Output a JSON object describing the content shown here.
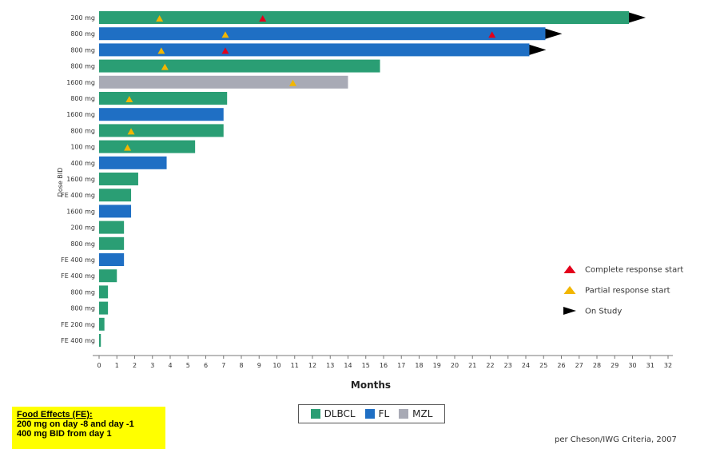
{
  "chart_data": {
    "type": "bar",
    "orientation": "horizontal",
    "ylabel": "Dose BID",
    "xlabel": "Months",
    "xlim": [
      0,
      32
    ],
    "xticks": [
      0,
      1,
      2,
      3,
      4,
      5,
      6,
      7,
      8,
      9,
      10,
      11,
      12,
      13,
      14,
      15,
      16,
      17,
      18,
      19,
      20,
      21,
      22,
      23,
      24,
      25,
      26,
      27,
      28,
      29,
      30,
      31,
      32
    ],
    "colors": {
      "DLBCL": "#2a9e74",
      "FL": "#1f6fc4",
      "MZL": "#a8aab5"
    },
    "marker_colors": {
      "complete": "#e3001b",
      "partial": "#f2b600",
      "on_study": "#000000"
    },
    "bars": [
      {
        "label": "200 mg",
        "type": "DLBCL",
        "months": 29.8,
        "on_study": true,
        "partial": [
          3.4
        ],
        "complete": [
          9.2
        ]
      },
      {
        "label": "800 mg",
        "type": "FL",
        "months": 25.1,
        "on_study": true,
        "partial": [
          7.1
        ],
        "complete": [
          22.1
        ]
      },
      {
        "label": "800 mg",
        "type": "FL",
        "months": 24.2,
        "on_study": true,
        "partial": [
          3.5
        ],
        "complete": [
          7.1
        ]
      },
      {
        "label": "800 mg",
        "type": "DLBCL",
        "months": 15.8,
        "on_study": false,
        "partial": [
          3.7
        ],
        "complete": []
      },
      {
        "label": "1600 mg",
        "type": "MZL",
        "months": 14.0,
        "on_study": false,
        "partial": [
          10.9
        ],
        "complete": []
      },
      {
        "label": "800 mg",
        "type": "DLBCL",
        "months": 7.2,
        "on_study": false,
        "partial": [
          1.7
        ],
        "complete": []
      },
      {
        "label": "1600 mg",
        "type": "FL",
        "months": 7.0,
        "on_study": false,
        "partial": [],
        "complete": []
      },
      {
        "label": "800 mg",
        "type": "DLBCL",
        "months": 7.0,
        "on_study": false,
        "partial": [
          1.8
        ],
        "complete": []
      },
      {
        "label": "100 mg",
        "type": "DLBCL",
        "months": 5.4,
        "on_study": false,
        "partial": [
          1.6
        ],
        "complete": []
      },
      {
        "label": "400 mg",
        "type": "FL",
        "months": 3.8,
        "on_study": false,
        "partial": [],
        "complete": []
      },
      {
        "label": "1600 mg",
        "type": "DLBCL",
        "months": 2.2,
        "on_study": false,
        "partial": [],
        "complete": []
      },
      {
        "label": "FE 400 mg",
        "type": "DLBCL",
        "months": 1.8,
        "on_study": false,
        "partial": [],
        "complete": []
      },
      {
        "label": "1600 mg",
        "type": "FL",
        "months": 1.8,
        "on_study": false,
        "partial": [],
        "complete": []
      },
      {
        "label": "200 mg",
        "type": "DLBCL",
        "months": 1.4,
        "on_study": false,
        "partial": [],
        "complete": []
      },
      {
        "label": "800 mg",
        "type": "DLBCL",
        "months": 1.4,
        "on_study": false,
        "partial": [],
        "complete": []
      },
      {
        "label": "FE 400 mg",
        "type": "FL",
        "months": 1.4,
        "on_study": false,
        "partial": [],
        "complete": []
      },
      {
        "label": "FE 400 mg",
        "type": "DLBCL",
        "months": 1.0,
        "on_study": false,
        "partial": [],
        "complete": []
      },
      {
        "label": "800 mg",
        "type": "DLBCL",
        "months": 0.5,
        "on_study": false,
        "partial": [],
        "complete": []
      },
      {
        "label": "800 mg",
        "type": "DLBCL",
        "months": 0.5,
        "on_study": false,
        "partial": [],
        "complete": []
      },
      {
        "label": "FE 200 mg",
        "type": "DLBCL",
        "months": 0.3,
        "on_study": false,
        "partial": [],
        "complete": []
      },
      {
        "label": "FE 400 mg",
        "type": "DLBCL",
        "months": 0.1,
        "on_study": false,
        "partial": [],
        "complete": []
      }
    ],
    "marker_legend": [
      {
        "key": "complete",
        "label": "Complete response start"
      },
      {
        "key": "partial",
        "label": "Partial response start"
      },
      {
        "key": "on_study",
        "label": "On Study"
      }
    ],
    "type_legend": [
      "DLBCL",
      "FL",
      "MZL"
    ]
  },
  "food_effects": {
    "title": "Food Effects (FE):",
    "line1": "200 mg on day -8 and day -1",
    "line2": "400 mg BID from day 1"
  },
  "criteria_note": "per Cheson/IWG Criteria, 2007"
}
